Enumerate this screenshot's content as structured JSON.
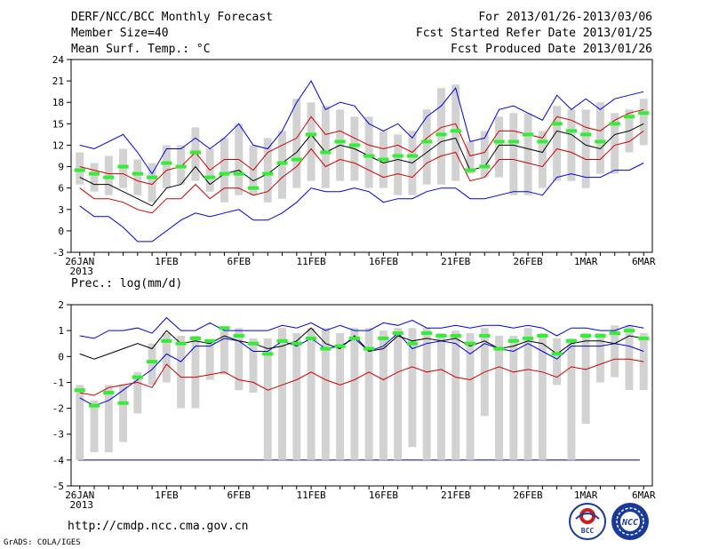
{
  "header": {
    "title": "DERF/NCC/BCC Monthly Forecast",
    "member": "Member Size=40",
    "variable": "Mean Surf. Temp.: °C",
    "period": "For 2013/01/26-2013/03/06",
    "started": "Fcst Started Refer Date 2013/01/25",
    "produced": "Fcst Produced Date 2013/01/26"
  },
  "footer": {
    "url": "http://cmdp.ncc.cma.gov.cn",
    "grads": "GrADS: COLA/IGES",
    "logo_bcc": "BCC",
    "logo_ncc": "NCC"
  },
  "colors": {
    "box": "#d2d2d2",
    "mean": "#000000",
    "band": "#cc0000",
    "range": "#0000dd",
    "obs": "#33ee33",
    "floor": "#000088"
  },
  "chart_data": [
    {
      "type": "line",
      "title": "Mean Surf. Temp.: °C",
      "ylim": [
        -3,
        24
      ],
      "yticks": [
        -3,
        0,
        3,
        6,
        9,
        12,
        15,
        18,
        21,
        24
      ],
      "x": [
        0,
        1,
        2,
        3,
        4,
        5,
        6,
        7,
        8,
        9,
        10,
        11,
        12,
        13,
        14,
        15,
        16,
        17,
        18,
        19,
        20,
        21,
        22,
        23,
        24,
        25,
        26,
        27,
        28,
        29,
        30,
        31,
        32,
        33,
        34,
        35,
        36,
        37,
        38,
        39
      ],
      "xtick_positions": [
        0,
        6,
        11,
        16,
        21,
        26,
        31,
        35,
        39
      ],
      "xtick_labels": [
        "26JAN",
        "1FEB",
        "6FEB",
        "11FEB",
        "16FEB",
        "21FEB",
        "26FEB",
        "1MAR",
        "6MAR"
      ],
      "xtick_sublabel": "2013",
      "series": [
        {
          "name": "box_low",
          "values": [
            6.5,
            5.5,
            5,
            6,
            5,
            4,
            6,
            6.5,
            7,
            5.5,
            4,
            5,
            5,
            4,
            4.5,
            6,
            7,
            6,
            7,
            7,
            6,
            6,
            5,
            5,
            6.5,
            6.5,
            7,
            8,
            7.5,
            7.5,
            5,
            5,
            6,
            7,
            7,
            6,
            8,
            8,
            11,
            12
          ]
        },
        {
          "name": "box_high",
          "values": [
            11,
            9.5,
            10.5,
            11.5,
            10,
            9.5,
            12,
            12,
            14.5,
            11.5,
            13,
            15,
            12,
            13,
            14,
            18.5,
            18,
            17.5,
            17,
            16,
            16,
            14,
            13.5,
            14,
            17,
            20,
            20.5,
            12.5,
            14,
            16,
            16.5,
            16.5,
            14,
            17.5,
            17,
            17,
            18,
            16.5,
            17,
            18.5
          ]
        },
        {
          "name": "ens_max",
          "values": [
            12,
            11.5,
            12.5,
            13.5,
            11,
            8,
            11.5,
            11.5,
            13,
            11.5,
            13,
            15,
            12,
            11.5,
            14,
            18,
            21,
            17,
            18,
            17.5,
            15,
            14,
            15,
            13,
            16,
            17.5,
            20,
            12.5,
            13,
            17,
            17.5,
            16.5,
            15.5,
            19,
            17,
            18.5,
            17,
            18.5,
            19,
            19.5
          ]
        },
        {
          "name": "upper",
          "values": [
            9,
            8.5,
            8,
            8,
            7,
            6.5,
            8.5,
            9,
            11,
            8.5,
            10,
            10,
            8.5,
            11,
            12,
            13,
            16,
            13.5,
            14,
            13,
            12,
            11.5,
            12,
            11,
            13,
            14.5,
            15,
            10.5,
            11,
            14,
            14,
            13.5,
            13,
            16,
            15.5,
            14.5,
            14,
            15.5,
            16.5,
            17
          ]
        },
        {
          "name": "mean",
          "values": [
            7.5,
            6.5,
            6.5,
            5.5,
            4.5,
            3.5,
            6,
            6.5,
            9,
            6.5,
            8,
            8.5,
            7,
            8,
            9.5,
            11,
            13.5,
            11,
            12,
            11.5,
            10.5,
            9.5,
            10,
            9.5,
            11,
            12.5,
            13,
            8.5,
            9,
            12,
            12,
            11.5,
            11,
            14,
            13.5,
            12,
            11.5,
            13.5,
            14,
            15
          ]
        },
        {
          "name": "lower",
          "values": [
            6,
            4.5,
            4.5,
            4,
            3,
            2.5,
            4.5,
            4.5,
            6.5,
            4.5,
            6,
            6,
            5,
            5.5,
            7.5,
            9,
            11.5,
            9,
            10,
            9.5,
            8.5,
            7.5,
            8,
            7.5,
            9.5,
            10.5,
            11,
            7,
            7.5,
            10,
            10,
            9.5,
            9,
            11.5,
            11,
            10,
            10,
            12,
            12.5,
            14
          ]
        },
        {
          "name": "ens_min",
          "values": [
            3.5,
            2,
            2,
            0.5,
            -1.5,
            -1.5,
            0,
            1.5,
            2.5,
            2,
            2.5,
            3,
            1.5,
            1.5,
            2.5,
            4,
            6,
            5.5,
            5.5,
            6,
            5.5,
            4,
            4.5,
            4.5,
            5.5,
            6,
            6,
            4.5,
            4.5,
            5,
            5.5,
            5.5,
            5,
            7.5,
            8,
            7.5,
            7.5,
            8.5,
            8.5,
            9.5
          ]
        },
        {
          "name": "observed",
          "values": [
            8.5,
            8,
            7.5,
            9,
            8,
            7.5,
            9.5,
            9,
            11,
            7.5,
            8,
            8,
            6,
            8,
            9.5,
            10,
            13.5,
            11,
            12.5,
            12,
            10.5,
            10,
            10.5,
            10.5,
            12.5,
            13.5,
            14,
            8.5,
            9,
            12.5,
            12.5,
            13.5,
            12.5,
            15,
            14,
            13.5,
            12.5,
            15,
            16,
            16.5
          ]
        }
      ]
    },
    {
      "type": "line",
      "title": "Prec.: log(mm/d)",
      "ylim": [
        -5,
        2
      ],
      "yticks": [
        -5,
        -4,
        -3,
        -2,
        -1,
        0,
        1,
        2
      ],
      "x": [
        0,
        1,
        2,
        3,
        4,
        5,
        6,
        7,
        8,
        9,
        10,
        11,
        12,
        13,
        14,
        15,
        16,
        17,
        18,
        19,
        20,
        21,
        22,
        23,
        24,
        25,
        26,
        27,
        28,
        29,
        30,
        31,
        32,
        33,
        34,
        35,
        36,
        37,
        38,
        39
      ],
      "xtick_positions": [
        0,
        6,
        11,
        16,
        21,
        26,
        31,
        35,
        39
      ],
      "xtick_labels": [
        "26JAN",
        "1FEB",
        "6FEB",
        "11FEB",
        "16FEB",
        "21FEB",
        "26FEB",
        "1MAR",
        "6MAR"
      ],
      "xtick_sublabel": "2013",
      "floor_value": -4,
      "series": [
        {
          "name": "box_low",
          "values": [
            -4,
            -3.7,
            -3.7,
            -3.3,
            -2.2,
            -1.1,
            -1,
            -2,
            -2,
            -0.9,
            -0.7,
            -1.3,
            -1.4,
            -4,
            -4,
            -4,
            -4,
            -4,
            -4,
            -4,
            -4,
            -4,
            -4,
            -3.5,
            -4,
            -4,
            -4,
            -4,
            -2.3,
            -4,
            -4,
            -4,
            -4,
            -1.1,
            -4,
            -2.6,
            -1,
            -0.8,
            -1.3,
            -1.3
          ]
        },
        {
          "name": "box_high",
          "values": [
            -1.1,
            -1.7,
            -1.1,
            -1.1,
            -0.6,
            0.5,
            0.9,
            0.8,
            0.8,
            0.6,
            1,
            1.1,
            0.7,
            0.7,
            1.1,
            0.9,
            1.1,
            1.1,
            0.9,
            1.1,
            1.1,
            1,
            1.1,
            1.1,
            1.1,
            0.9,
            1,
            0.9,
            1.1,
            0.8,
            0.8,
            1.1,
            0.9,
            0.7,
            0.7,
            0.9,
            0.9,
            1.2,
            1.2,
            0.9
          ]
        },
        {
          "name": "ens_max",
          "values": [
            0.8,
            0.7,
            1,
            1,
            1.1,
            0.9,
            1.5,
            1,
            1,
            1.3,
            1,
            1,
            1,
            1,
            1.2,
            1.1,
            1.3,
            1,
            1.2,
            1,
            1,
            1.3,
            1.2,
            1.4,
            1.1,
            1.1,
            1.2,
            1.1,
            1.2,
            1.2,
            1.1,
            1.2,
            1.1,
            0.8,
            1.1,
            1.1,
            1,
            1,
            1.2,
            1.1
          ]
        },
        {
          "name": "mean",
          "values": [
            0.1,
            -0.1,
            0.1,
            0.3,
            0.5,
            0.3,
            1,
            0.5,
            0.6,
            0.5,
            0.8,
            0.6,
            0.5,
            0.3,
            0.4,
            0.6,
            1.1,
            0.5,
            0.3,
            0.8,
            0.2,
            0.3,
            0.8,
            0.6,
            0.7,
            0.6,
            0.7,
            0.4,
            0.6,
            0.3,
            0.4,
            0.6,
            0.5,
            0.1,
            0.5,
            0.6,
            0.6,
            0.5,
            0.8,
            0.7
          ]
        },
        {
          "name": "lower",
          "values": [
            -1.4,
            -1.5,
            -1.2,
            -1.1,
            -1,
            -1.2,
            -0.3,
            -0.8,
            -0.8,
            -0.7,
            -0.6,
            -0.9,
            -1,
            -1.3,
            -1.1,
            -0.9,
            -0.6,
            -0.9,
            -1.1,
            -0.9,
            -0.6,
            -0.9,
            -0.6,
            -0.4,
            -0.6,
            -0.5,
            -0.8,
            -0.9,
            -0.6,
            -0.4,
            -0.6,
            -0.5,
            -0.6,
            -0.8,
            -0.4,
            -0.5,
            -0.3,
            -0.1,
            -0.1,
            -0.2
          ]
        },
        {
          "name": "ens_min",
          "values": [
            -1.6,
            -1.9,
            -1.7,
            -1.3,
            -0.9,
            -0.5,
            0.1,
            -0.2,
            0.4,
            0.4,
            0.7,
            0.6,
            0.2,
            0.2,
            0.6,
            0.4,
            0.7,
            0.3,
            0.4,
            0.7,
            0.2,
            0.4,
            0.9,
            0.3,
            0.5,
            0.6,
            0.5,
            0.1,
            0.5,
            0.3,
            0.2,
            0.5,
            0.2,
            -0.1,
            0.4,
            0.4,
            0.4,
            0.5,
            0.4,
            0.2
          ]
        },
        {
          "name": "observed",
          "values": [
            -1.3,
            -1.9,
            -1.4,
            -1.8,
            -0.8,
            -0.2,
            0.6,
            0.5,
            0.7,
            0.6,
            1.1,
            0.8,
            0.5,
            0.1,
            0.6,
            0.5,
            0.7,
            0.3,
            0.4,
            0.7,
            0.3,
            0.7,
            0.9,
            0.5,
            0.9,
            0.8,
            0.8,
            0.5,
            0.8,
            0.3,
            0.6,
            0.7,
            0.8,
            0.1,
            0.6,
            0.8,
            0.8,
            0.9,
            1,
            0.7
          ]
        }
      ]
    }
  ]
}
